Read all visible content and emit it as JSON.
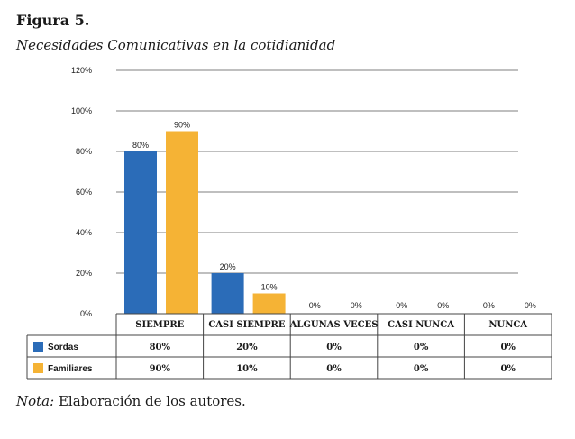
{
  "figure": {
    "label": "Figura 5.",
    "subtitle": "Necesidades Comunicativas en la cotidianidad"
  },
  "note": {
    "prefix": "Nota:",
    "text": " Elaboración de los autores."
  },
  "chart_data": {
    "type": "bar",
    "categories": [
      "SIEMPRE",
      "CASI SIEMPRE",
      "ALGUNAS VECES",
      "CASI NUNCA",
      "NUNCA"
    ],
    "series": [
      {
        "name": "Sordas",
        "values": [
          80,
          20,
          0,
          0,
          0
        ],
        "color": "#2b6cb8",
        "labels": [
          "80%",
          "20%",
          "0%",
          "0%",
          "0%"
        ]
      },
      {
        "name": "Familiares",
        "values": [
          90,
          10,
          0,
          0,
          0
        ],
        "color": "#f5b335",
        "labels": [
          "90%",
          "10%",
          "0%",
          "0%",
          "0%"
        ]
      }
    ],
    "ylim": [
      0,
      120
    ],
    "yticks": [
      0,
      20,
      40,
      60,
      80,
      100,
      120
    ],
    "ytick_labels": [
      "0%",
      "20%",
      "40%",
      "60%",
      "80%",
      "100%",
      "120%"
    ],
    "grid": true,
    "legend": "table-below",
    "table": {
      "rows": [
        {
          "series": "Sordas",
          "cells": [
            "80%",
            "20%",
            "0%",
            "0%",
            "0%"
          ]
        },
        {
          "series": "Familiares",
          "cells": [
            "90%",
            "10%",
            "0%",
            "0%",
            "0%"
          ]
        }
      ]
    }
  }
}
